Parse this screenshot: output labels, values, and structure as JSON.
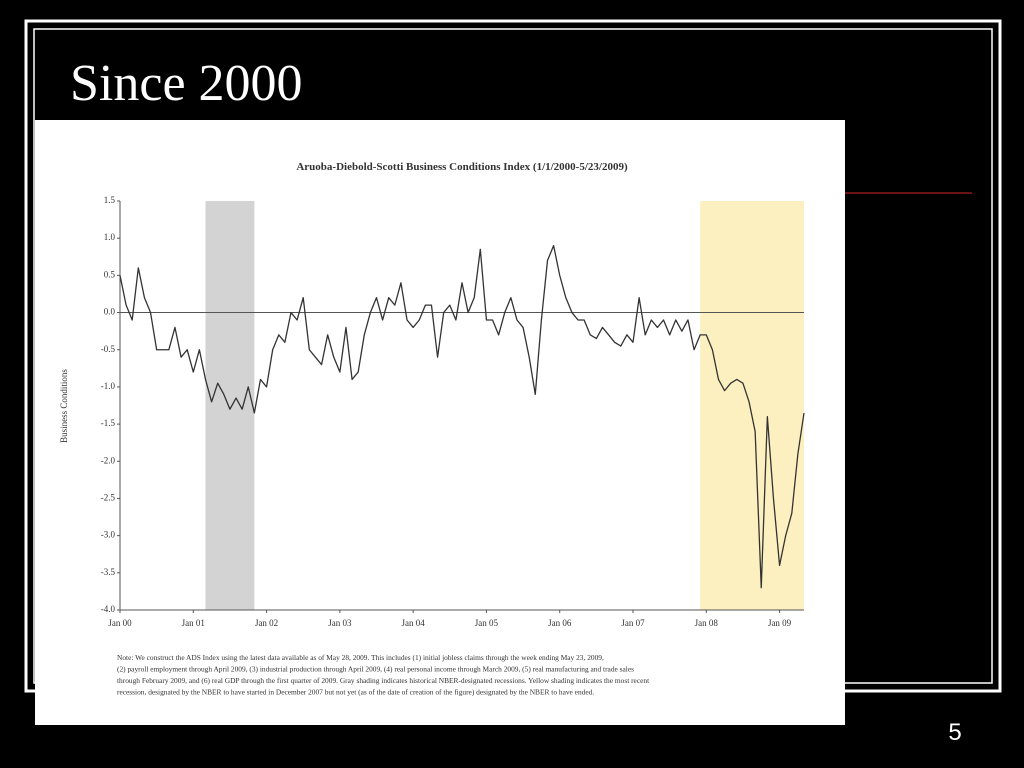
{
  "slide": {
    "title": "Since 2000",
    "page_number": 5
  },
  "chart_data": {
    "type": "line",
    "title": "Aruoba-Diebold-Scotti Business Conditions Index (1/1/2000-5/23/2009)",
    "y_label": "Business Conditions",
    "color": "#333333",
    "x": [
      "2000-01",
      "2000-02",
      "2000-03",
      "2000-04",
      "2000-05",
      "2000-06",
      "2000-07",
      "2000-08",
      "2000-09",
      "2000-10",
      "2000-11",
      "2000-12",
      "2001-01",
      "2001-02",
      "2001-03",
      "2001-04",
      "2001-05",
      "2001-06",
      "2001-07",
      "2001-08",
      "2001-09",
      "2001-10",
      "2001-11",
      "2001-12",
      "2002-01",
      "2002-02",
      "2002-03",
      "2002-04",
      "2002-05",
      "2002-06",
      "2002-07",
      "2002-08",
      "2002-09",
      "2002-10",
      "2002-11",
      "2002-12",
      "2003-01",
      "2003-02",
      "2003-03",
      "2003-04",
      "2003-05",
      "2003-06",
      "2003-07",
      "2003-08",
      "2003-09",
      "2003-10",
      "2003-11",
      "2003-12",
      "2004-01",
      "2004-02",
      "2004-03",
      "2004-04",
      "2004-05",
      "2004-06",
      "2004-07",
      "2004-08",
      "2004-09",
      "2004-10",
      "2004-11",
      "2004-12",
      "2005-01",
      "2005-02",
      "2005-03",
      "2005-04",
      "2005-05",
      "2005-06",
      "2005-07",
      "2005-08",
      "2005-09",
      "2005-10",
      "2005-11",
      "2005-12",
      "2006-01",
      "2006-02",
      "2006-03",
      "2006-04",
      "2006-05",
      "2006-06",
      "2006-07",
      "2006-08",
      "2006-09",
      "2006-10",
      "2006-11",
      "2006-12",
      "2007-01",
      "2007-02",
      "2007-03",
      "2007-04",
      "2007-05",
      "2007-06",
      "2007-07",
      "2007-08",
      "2007-09",
      "2007-10",
      "2007-11",
      "2007-12",
      "2008-01",
      "2008-02",
      "2008-03",
      "2008-04",
      "2008-05",
      "2008-06",
      "2008-07",
      "2008-08",
      "2008-09",
      "2008-10",
      "2008-11",
      "2008-12",
      "2009-01",
      "2009-02",
      "2009-03",
      "2009-04",
      "2009-05"
    ],
    "values": [
      0.5,
      0.1,
      -0.1,
      0.6,
      0.2,
      0.0,
      -0.5,
      -0.5,
      -0.5,
      -0.2,
      -0.6,
      -0.5,
      -0.8,
      -0.5,
      -0.9,
      -1.2,
      -0.95,
      -1.1,
      -1.3,
      -1.15,
      -1.3,
      -1.0,
      -1.35,
      -0.9,
      -1.0,
      -0.5,
      -0.3,
      -0.4,
      0.0,
      -0.1,
      0.2,
      -0.5,
      -0.6,
      -0.7,
      -0.3,
      -0.6,
      -0.8,
      -0.2,
      -0.9,
      -0.8,
      -0.3,
      0.0,
      0.2,
      -0.1,
      0.2,
      0.1,
      0.4,
      -0.1,
      -0.2,
      -0.1,
      0.1,
      0.1,
      -0.6,
      0.0,
      0.1,
      -0.1,
      0.4,
      0.0,
      0.2,
      0.85,
      -0.1,
      -0.1,
      -0.3,
      0.0,
      0.2,
      -0.1,
      -0.2,
      -0.6,
      -1.1,
      -0.1,
      0.7,
      0.9,
      0.5,
      0.2,
      0.0,
      -0.1,
      -0.1,
      -0.3,
      -0.35,
      -0.2,
      -0.3,
      -0.4,
      -0.45,
      -0.3,
      -0.4,
      0.2,
      -0.3,
      -0.1,
      -0.2,
      -0.1,
      -0.3,
      -0.1,
      -0.25,
      -0.1,
      -0.5,
      -0.3,
      -0.3,
      -0.5,
      -0.9,
      -1.05,
      -0.95,
      -0.9,
      -0.95,
      -1.2,
      -1.6,
      -3.7,
      -1.4,
      -2.5,
      -3.4,
      -3.0,
      -2.7,
      -1.9,
      -1.35
    ],
    "xlim": [
      "2000-01",
      "2009-05"
    ],
    "xticks": [
      {
        "value": "2000-01",
        "label": "Jan 00"
      },
      {
        "value": "2001-01",
        "label": "Jan 01"
      },
      {
        "value": "2002-01",
        "label": "Jan 02"
      },
      {
        "value": "2003-01",
        "label": "Jan 03"
      },
      {
        "value": "2004-01",
        "label": "Jan 04"
      },
      {
        "value": "2005-01",
        "label": "Jan 05"
      },
      {
        "value": "2006-01",
        "label": "Jan 06"
      },
      {
        "value": "2007-01",
        "label": "Jan 07"
      },
      {
        "value": "2008-01",
        "label": "Jan 08"
      },
      {
        "value": "2009-01",
        "label": "Jan 09"
      }
    ],
    "ylim": [
      -4,
      1.5
    ],
    "yticks": [
      {
        "value": 1.5,
        "label": "1.5"
      },
      {
        "value": 1,
        "label": "1.0"
      },
      {
        "value": 0.5,
        "label": "0.5"
      },
      {
        "value": 0,
        "label": "0.0"
      },
      -0.5,
      {
        "value": -1,
        "label": "-1.0"
      },
      -1.5,
      {
        "value": -2,
        "label": "-2.0"
      },
      -2.5,
      {
        "value": -3,
        "label": "-3.0"
      },
      -3.5,
      {
        "value": -4,
        "label": "-4.0"
      }
    ],
    "shading": [
      {
        "start": "2001-03",
        "end": "2001-11",
        "color": "#d3d3d3"
      },
      {
        "start": "2007-12",
        "end": "2009-05",
        "color": "#fcf0c0"
      }
    ],
    "note": [
      "Note: We construct the ADS Index using the latest data available as of May 28, 2009. This includes (1) initial jobless claims through the week ending May 23, 2009,",
      "(2) payroll employment through April 2009, (3) industrial production through April 2009, (4) real personal income through March 2009, (5) real manufacturing and trade sales",
      "through February 2009, and (6) real GDP through the first quarter of 2009. Gray shading indicates historical NBER-designated recessions. Yellow shading indicates the most recent",
      "recession, designated by the NBER to have started in December 2007 but not yet (as of the date of creation of the figure) designated by the NBER to have ended."
    ]
  }
}
